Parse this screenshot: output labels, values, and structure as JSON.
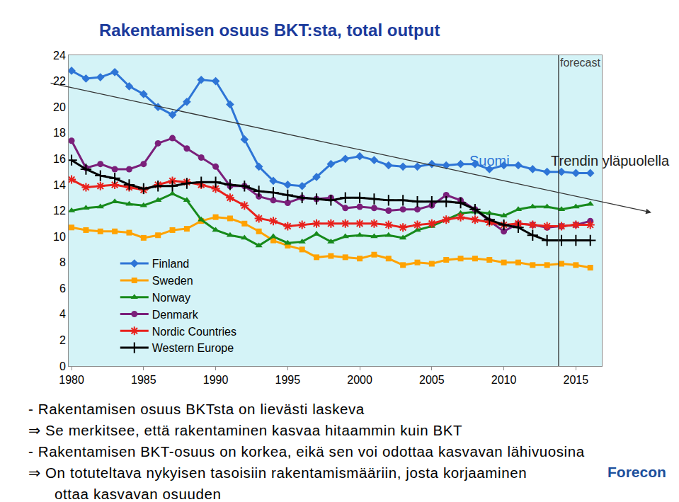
{
  "chart_data": {
    "type": "line",
    "title": "Rakentamisen osuus BKT:sta, total output",
    "x": [
      1980,
      1981,
      1982,
      1983,
      1984,
      1985,
      1986,
      1987,
      1988,
      1989,
      1990,
      1991,
      1992,
      1993,
      1994,
      1995,
      1996,
      1997,
      1998,
      1999,
      2000,
      2001,
      2002,
      2003,
      2004,
      2005,
      2006,
      2007,
      2008,
      2009,
      2010,
      2011,
      2012,
      2013,
      2014,
      2015,
      2016
    ],
    "series": [
      {
        "name": "Finland",
        "color": "#2e75d6",
        "marker": "diamond",
        "values": [
          22.8,
          22.2,
          22.3,
          22.7,
          21.6,
          21.0,
          20.0,
          19.4,
          20.4,
          22.1,
          22.0,
          20.2,
          17.5,
          15.4,
          14.3,
          14.0,
          13.9,
          14.6,
          15.6,
          16.0,
          16.2,
          15.9,
          15.5,
          15.4,
          15.4,
          15.6,
          15.5,
          15.6,
          15.6,
          15.2,
          15.5,
          15.5,
          15.2,
          15.0,
          15.0,
          14.9,
          14.9
        ]
      },
      {
        "name": "Sweden",
        "color": "#ffa200",
        "marker": "square",
        "values": [
          10.7,
          10.5,
          10.4,
          10.4,
          10.3,
          9.9,
          10.1,
          10.5,
          10.6,
          11.2,
          11.5,
          11.4,
          11.0,
          10.4,
          9.7,
          9.3,
          9.0,
          8.4,
          8.5,
          8.4,
          8.3,
          8.6,
          8.3,
          7.8,
          8.0,
          7.9,
          8.2,
          8.3,
          8.3,
          8.2,
          8.0,
          8.0,
          7.8,
          7.8,
          7.9,
          7.8,
          7.6
        ]
      },
      {
        "name": "Norway",
        "color": "#178a1c",
        "marker": "triangle",
        "values": [
          12.0,
          12.2,
          12.3,
          12.7,
          12.5,
          12.4,
          12.8,
          13.3,
          12.8,
          11.3,
          10.5,
          10.1,
          9.9,
          9.3,
          10.0,
          9.5,
          9.6,
          10.2,
          9.6,
          10.0,
          10.1,
          10.0,
          10.1,
          9.9,
          10.5,
          10.8,
          11.3,
          11.8,
          11.9,
          11.8,
          11.6,
          12.1,
          12.3,
          12.3,
          12.1,
          12.3,
          12.5
        ]
      },
      {
        "name": "Denmark",
        "color": "#7a1f7a",
        "marker": "circle",
        "values": [
          17.4,
          15.3,
          15.6,
          15.2,
          15.2,
          15.6,
          17.2,
          17.6,
          16.8,
          16.1,
          15.4,
          13.9,
          13.9,
          13.1,
          12.8,
          12.6,
          13.0,
          12.9,
          13.0,
          12.2,
          12.3,
          12.2,
          12.0,
          12.1,
          12.1,
          12.4,
          13.2,
          12.8,
          12.1,
          11.2,
          10.4,
          11.0,
          10.9,
          10.7,
          10.8,
          10.9,
          11.2
        ]
      },
      {
        "name": "Nordic Countries",
        "color": "#e8211c",
        "marker": "asterisk",
        "values": [
          14.4,
          13.8,
          13.9,
          14.0,
          13.8,
          13.6,
          14.0,
          14.3,
          14.2,
          14.0,
          13.7,
          13.0,
          12.4,
          11.4,
          11.2,
          10.8,
          10.9,
          11.0,
          11.0,
          11.0,
          11.0,
          11.0,
          10.9,
          10.7,
          10.9,
          11.0,
          11.3,
          11.5,
          11.3,
          11.1,
          10.9,
          11.0,
          10.9,
          10.8,
          10.8,
          10.9,
          10.9
        ]
      },
      {
        "name": "Western Europe",
        "color": "#000000",
        "marker": "cross",
        "values": [
          15.9,
          15.2,
          14.7,
          14.5,
          14.0,
          13.7,
          13.9,
          13.9,
          14.1,
          14.2,
          14.2,
          14.0,
          13.9,
          13.5,
          13.4,
          13.2,
          13.0,
          12.9,
          12.8,
          13.0,
          13.0,
          12.9,
          12.8,
          12.8,
          12.7,
          12.7,
          12.7,
          12.6,
          12.1,
          11.3,
          10.9,
          10.7,
          10.1,
          9.7,
          9.7,
          9.7,
          9.7
        ]
      }
    ],
    "xlim": [
      1979.8,
      2016.8
    ],
    "xticks": [
      1980,
      1985,
      1990,
      1995,
      2000,
      2005,
      2010,
      2015
    ],
    "ylim": [
      0,
      24
    ],
    "yticks": [
      0,
      2,
      4,
      6,
      8,
      10,
      12,
      14,
      16,
      18,
      20,
      22,
      24
    ],
    "grid": false,
    "legend": "lower left",
    "forecast_start": 2013.8,
    "annotations": [
      "forecast",
      "Suomi",
      "Trendin yläpuolella"
    ]
  },
  "notes": [
    "- Rakentamisen osuus BKTsta on lievästi laskeva",
    "⇒ Se merkitsee, että rakentaminen kasvaa hitaammin kuin BKT",
    "- Rakentamisen BKT-osuus on korkea, eikä sen voi odottaa kasvavan lähivuosina",
    "⇒ On totuteltava nykyisen tasoisiin rakentamismääriin, josta korjaaminen",
    "ottaa kasvavan osuuden"
  ],
  "logo": "Forecon"
}
